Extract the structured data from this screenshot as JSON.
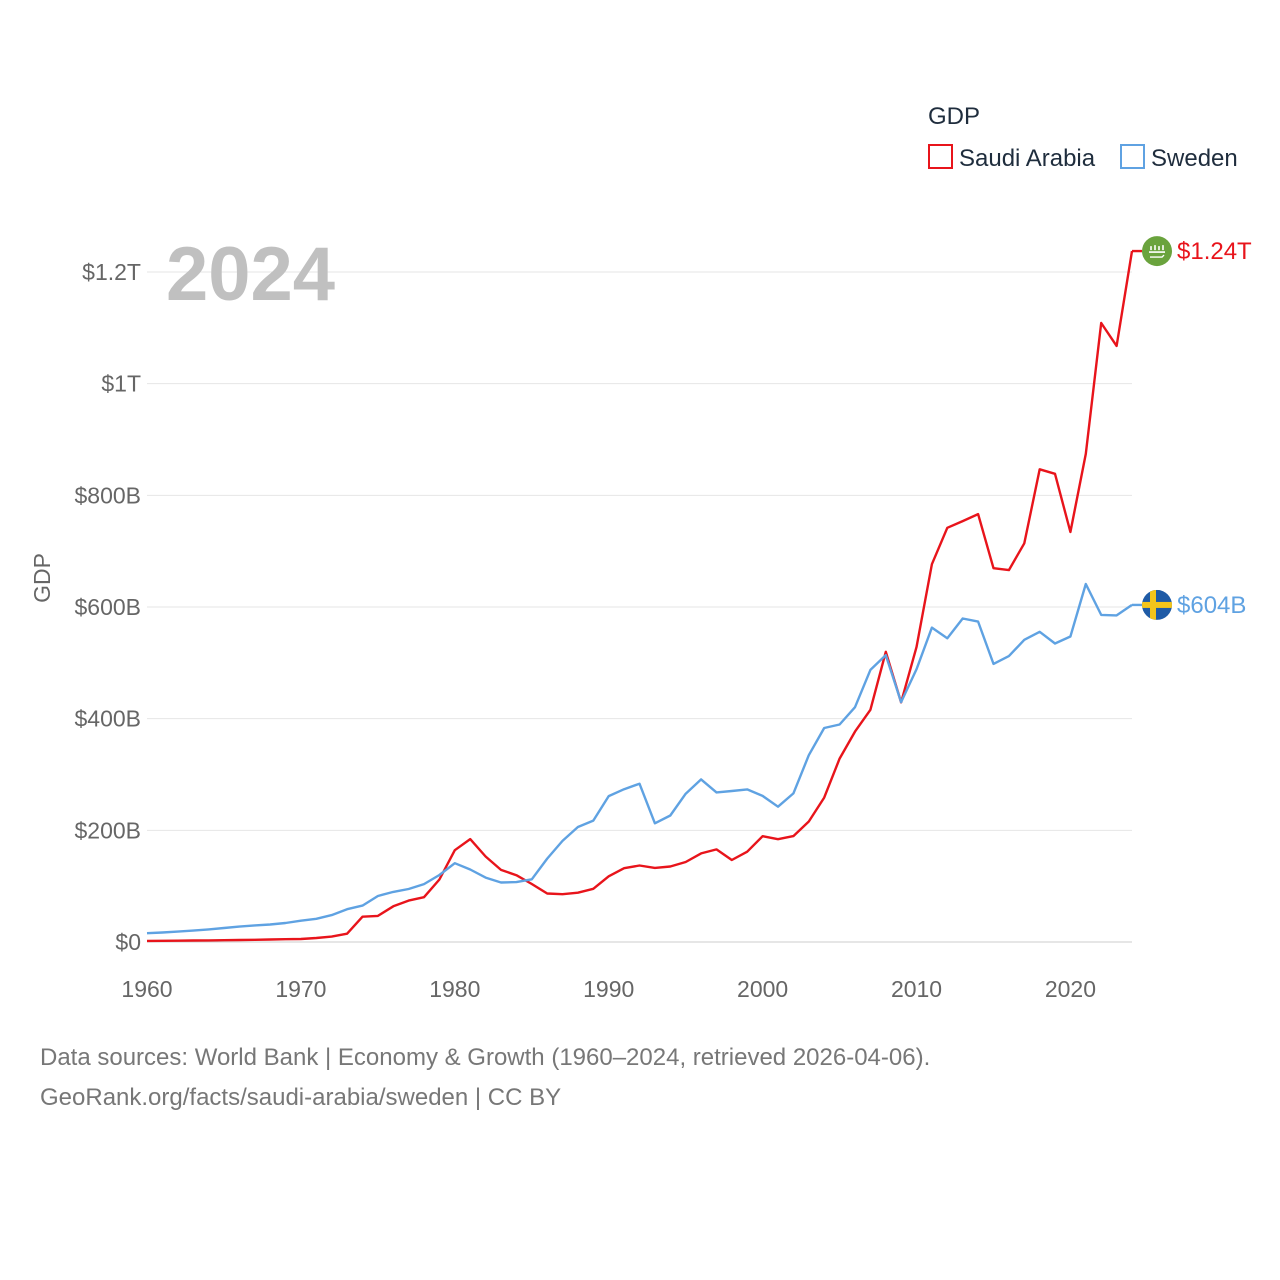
{
  "chart_data": {
    "type": "line",
    "title": "",
    "year_label": "2024",
    "xlabel": "",
    "ylabel": "GDP",
    "xlim": [
      1960,
      2024
    ],
    "ylim": [
      0,
      1200000000000
    ],
    "x_ticks": [
      1960,
      1970,
      1980,
      1990,
      2000,
      2010,
      2020
    ],
    "x_tick_labels": [
      "1960",
      "1970",
      "1980",
      "1990",
      "2000",
      "2010",
      "2020"
    ],
    "y_ticks": [
      0,
      200000000000,
      400000000000,
      600000000000,
      800000000000,
      1000000000000,
      1200000000000
    ],
    "y_tick_labels": [
      "$0",
      "$200B",
      "$400B",
      "$600B",
      "$800B",
      "$1T",
      "$1.2T"
    ],
    "grid": true,
    "legend": {
      "title": "GDP",
      "position": "top-right"
    },
    "x": [
      1960,
      1961,
      1962,
      1963,
      1964,
      1965,
      1966,
      1967,
      1968,
      1969,
      1970,
      1971,
      1972,
      1973,
      1974,
      1975,
      1976,
      1977,
      1978,
      1979,
      1980,
      1981,
      1982,
      1983,
      1984,
      1985,
      1986,
      1987,
      1988,
      1989,
      1990,
      1991,
      1992,
      1993,
      1994,
      1995,
      1996,
      1997,
      1998,
      1999,
      2000,
      2001,
      2002,
      2003,
      2004,
      2005,
      2006,
      2007,
      2008,
      2009,
      2010,
      2011,
      2012,
      2013,
      2014,
      2015,
      2016,
      2017,
      2018,
      2019,
      2020,
      2021,
      2022,
      2023,
      2024
    ],
    "series": [
      {
        "name": "Saudi Arabia",
        "color": "#e8141b",
        "end_label": "$1.24T",
        "flag_icon": "saudi-arabia-flag-icon",
        "values": [
          2,
          2.2,
          2.4,
          2.6,
          2.9,
          3.2,
          3.6,
          4,
          4.5,
          5,
          5.4,
          7.2,
          9.7,
          14.8,
          45.4,
          46.8,
          64,
          74.2,
          80.3,
          111.9,
          164.5,
          184.3,
          153.2,
          129.2,
          119.6,
          103.9,
          86.9,
          85.7,
          88.3,
          95.3,
          117.6,
          132.2,
          137.1,
          132.8,
          135.2,
          143.3,
          158.7,
          165.9,
          146.8,
          161.7,
          189.5,
          184.1,
          189.6,
          215.8,
          258.7,
          328.5,
          376.9,
          415.9,
          519.8,
          429.1,
          528.2,
          676.6,
          741.8,
          753.8,
          766.4,
          669.5,
          666.1,
          714.1,
          846.6,
          838.6,
          734.3,
          874.2,
          1108.6,
          1067.6,
          1237.5
        ]
      },
      {
        "name": "Sweden",
        "color": "#5fa2e2",
        "end_label": "$604B",
        "flag_icon": "sweden-flag-icon",
        "values": [
          15.8,
          17.1,
          18.6,
          20.4,
          22.5,
          25,
          27.6,
          29.8,
          31.4,
          34,
          38.1,
          41.6,
          48.2,
          58.7,
          65.2,
          82.4,
          89.8,
          94.9,
          103.7,
          120,
          141.2,
          129.8,
          115.3,
          106.6,
          107.2,
          112.3,
          149.4,
          181.1,
          205.9,
          217.4,
          261.4,
          273.7,
          283.6,
          212.6,
          226.6,
          265.7,
          291.3,
          267.9,
          270.5,
          273.3,
          261.7,
          242.4,
          266.1,
          334.6,
          383.2,
          389.5,
          420.5,
          487.3,
          513.9,
          429.7,
          488.4,
          563.1,
          543.9,
          579.4,
          573.8,
          498.1,
          512.1,
          541.2,
          555.5,
          534.7,
          547.1,
          641.2,
          585.9,
          584.9,
          603.7
        ]
      }
    ]
  },
  "footer": {
    "line1": "Data sources: World Bank | Economy & Growth (1960–2024, retrieved 2026-04-06).",
    "line2": "GeoRank.org/facts/saudi-arabia/sweden | CC BY"
  }
}
